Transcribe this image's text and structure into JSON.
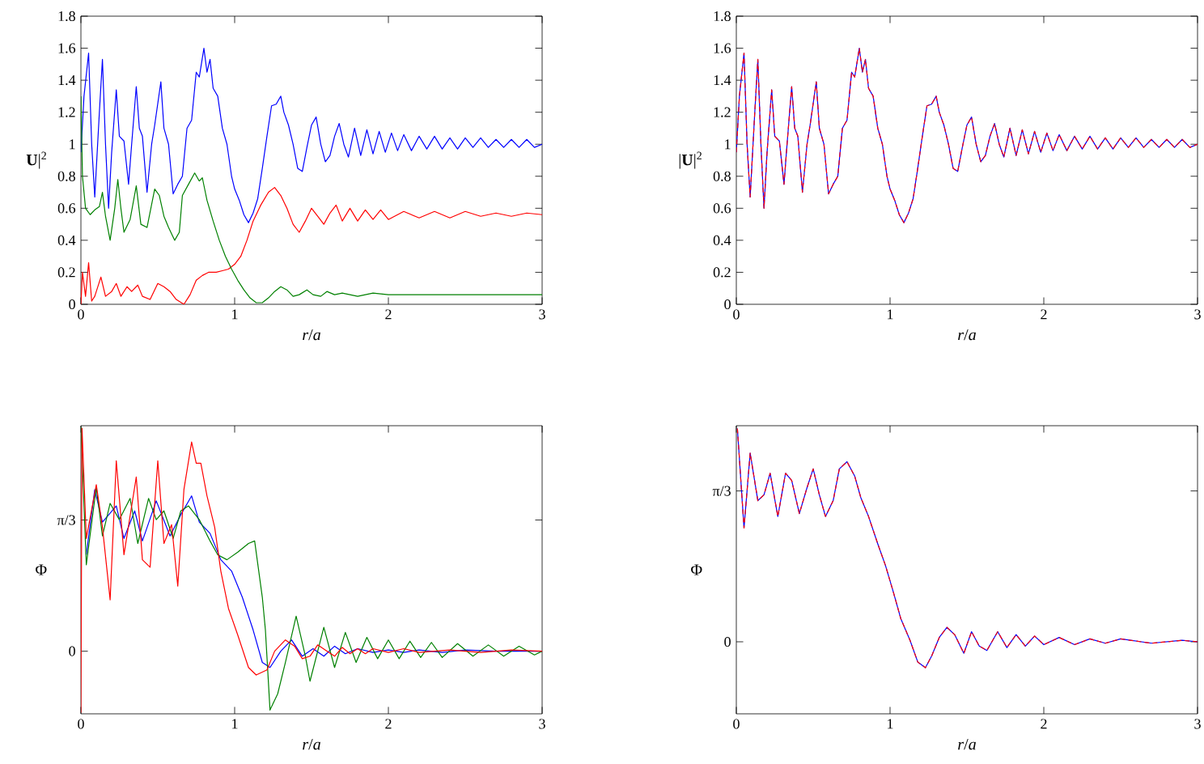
{
  "chart_data": [
    {
      "type": "line",
      "xlabel": "*r*/*a*",
      "ylabel": "**U**|$^{2}$",
      "xlim": [
        0,
        3
      ],
      "ylim": [
        0,
        1.8
      ],
      "xticks": [
        0,
        1,
        2,
        3
      ],
      "yticks": [
        0,
        0.2,
        0.4,
        0.6,
        0.8,
        1,
        1.2,
        1.4,
        1.6,
        1.8
      ],
      "series": [
        {
          "color": "#0000ff",
          "x": [
            0.0,
            0.02,
            0.05,
            0.07,
            0.09,
            0.12,
            0.14,
            0.16,
            0.18,
            0.2,
            0.23,
            0.25,
            0.28,
            0.31,
            0.33,
            0.36,
            0.38,
            0.4,
            0.43,
            0.46,
            0.48,
            0.52,
            0.54,
            0.57,
            0.6,
            0.63,
            0.66,
            0.69,
            0.72,
            0.75,
            0.77,
            0.8,
            0.82,
            0.84,
            0.86,
            0.89,
            0.92,
            0.95,
            0.98,
            1.0,
            1.03,
            1.06,
            1.09,
            1.12,
            1.15,
            1.18,
            1.21,
            1.24,
            1.27,
            1.3,
            1.32,
            1.35,
            1.38,
            1.41,
            1.44,
            1.47,
            1.5,
            1.53,
            1.56,
            1.59,
            1.62,
            1.65,
            1.68,
            1.71,
            1.74,
            1.78,
            1.82,
            1.86,
            1.9,
            1.94,
            1.98,
            2.02,
            2.06,
            2.1,
            2.15,
            2.2,
            2.25,
            2.3,
            2.35,
            2.4,
            2.45,
            2.5,
            2.55,
            2.6,
            2.65,
            2.7,
            2.75,
            2.8,
            2.85,
            2.9,
            2.95,
            3.0
          ],
          "values": [
            0.95,
            1.3,
            1.57,
            1.0,
            0.67,
            1.2,
            1.53,
            1.0,
            0.6,
            0.95,
            1.34,
            1.05,
            1.02,
            0.75,
            1.0,
            1.36,
            1.1,
            1.05,
            0.7,
            1.0,
            1.12,
            1.39,
            1.1,
            1.0,
            0.69,
            0.75,
            0.8,
            1.1,
            1.15,
            1.45,
            1.42,
            1.6,
            1.45,
            1.53,
            1.35,
            1.3,
            1.1,
            1.0,
            0.8,
            0.72,
            0.65,
            0.56,
            0.51,
            0.57,
            0.66,
            0.85,
            1.05,
            1.24,
            1.25,
            1.3,
            1.2,
            1.12,
            1.0,
            0.85,
            0.83,
            0.98,
            1.12,
            1.17,
            1.0,
            0.89,
            0.93,
            1.05,
            1.13,
            1.0,
            0.92,
            1.1,
            0.93,
            1.09,
            0.94,
            1.08,
            0.95,
            1.07,
            0.96,
            1.06,
            0.96,
            1.05,
            0.97,
            1.05,
            0.97,
            1.04,
            0.97,
            1.04,
            0.98,
            1.04,
            0.98,
            1.03,
            0.98,
            1.03,
            0.98,
            1.03,
            0.98,
            1.0
          ]
        },
        {
          "color": "#ff0000",
          "x": [
            0.0,
            0.01,
            0.03,
            0.05,
            0.07,
            0.09,
            0.13,
            0.16,
            0.2,
            0.23,
            0.26,
            0.3,
            0.33,
            0.37,
            0.4,
            0.45,
            0.5,
            0.54,
            0.58,
            0.62,
            0.67,
            0.71,
            0.75,
            0.79,
            0.83,
            0.88,
            0.92,
            0.96,
            1.0,
            1.04,
            1.08,
            1.12,
            1.17,
            1.22,
            1.26,
            1.3,
            1.34,
            1.38,
            1.42,
            1.46,
            1.5,
            1.54,
            1.58,
            1.62,
            1.66,
            1.7,
            1.75,
            1.8,
            1.85,
            1.9,
            1.95,
            2.0,
            2.1,
            2.2,
            2.3,
            2.4,
            2.5,
            2.6,
            2.7,
            2.8,
            2.9,
            3.0
          ],
          "values": [
            0.0,
            0.2,
            0.05,
            0.26,
            0.02,
            0.05,
            0.17,
            0.05,
            0.08,
            0.13,
            0.05,
            0.11,
            0.08,
            0.12,
            0.05,
            0.03,
            0.13,
            0.11,
            0.08,
            0.03,
            0.0,
            0.06,
            0.15,
            0.18,
            0.2,
            0.2,
            0.21,
            0.22,
            0.25,
            0.3,
            0.4,
            0.52,
            0.62,
            0.7,
            0.73,
            0.68,
            0.6,
            0.5,
            0.45,
            0.52,
            0.6,
            0.55,
            0.5,
            0.57,
            0.62,
            0.52,
            0.6,
            0.52,
            0.59,
            0.53,
            0.59,
            0.53,
            0.58,
            0.54,
            0.58,
            0.54,
            0.58,
            0.55,
            0.57,
            0.55,
            0.57,
            0.56
          ]
        },
        {
          "color": "#008000",
          "x": [
            0.0,
            0.01,
            0.03,
            0.06,
            0.09,
            0.12,
            0.14,
            0.16,
            0.19,
            0.22,
            0.24,
            0.26,
            0.28,
            0.32,
            0.36,
            0.39,
            0.43,
            0.48,
            0.51,
            0.54,
            0.57,
            0.61,
            0.64,
            0.66,
            0.7,
            0.74,
            0.77,
            0.79,
            0.82,
            0.86,
            0.9,
            0.94,
            0.98,
            1.02,
            1.06,
            1.1,
            1.14,
            1.18,
            1.22,
            1.26,
            1.3,
            1.34,
            1.38,
            1.42,
            1.47,
            1.51,
            1.56,
            1.6,
            1.65,
            1.7,
            1.8,
            1.9,
            2.0,
            2.2,
            2.5,
            2.8,
            3.0
          ],
          "values": [
            1.3,
            0.8,
            0.6,
            0.56,
            0.59,
            0.61,
            0.7,
            0.55,
            0.4,
            0.6,
            0.78,
            0.6,
            0.45,
            0.53,
            0.74,
            0.5,
            0.48,
            0.72,
            0.68,
            0.55,
            0.48,
            0.4,
            0.45,
            0.68,
            0.75,
            0.82,
            0.77,
            0.79,
            0.65,
            0.52,
            0.4,
            0.3,
            0.22,
            0.15,
            0.09,
            0.04,
            0.01,
            0.01,
            0.04,
            0.08,
            0.11,
            0.09,
            0.05,
            0.06,
            0.09,
            0.06,
            0.05,
            0.08,
            0.06,
            0.07,
            0.05,
            0.07,
            0.06,
            0.06,
            0.06,
            0.06,
            0.06
          ]
        }
      ]
    },
    {
      "type": "line",
      "xlabel": "*r*/*a*",
      "ylabel": "|**U**|$^{2}$",
      "xlim": [
        0,
        3
      ],
      "ylim": [
        0,
        1.8
      ],
      "xticks": [
        0,
        1,
        2,
        3
      ],
      "yticks": [
        0,
        0.2,
        0.4,
        0.6,
        0.8,
        1,
        1.2,
        1.4,
        1.6,
        1.8
      ],
      "series": [
        {
          "color": "#0000ff",
          "line_style": "solid",
          "x": [
            0.0,
            0.02,
            0.05,
            0.07,
            0.09,
            0.12,
            0.14,
            0.16,
            0.18,
            0.2,
            0.23,
            0.25,
            0.28,
            0.31,
            0.33,
            0.36,
            0.38,
            0.4,
            0.43,
            0.46,
            0.48,
            0.52,
            0.54,
            0.57,
            0.6,
            0.63,
            0.66,
            0.69,
            0.72,
            0.75,
            0.77,
            0.8,
            0.82,
            0.84,
            0.86,
            0.89,
            0.92,
            0.95,
            0.98,
            1.0,
            1.03,
            1.06,
            1.09,
            1.12,
            1.15,
            1.18,
            1.21,
            1.24,
            1.27,
            1.3,
            1.32,
            1.35,
            1.38,
            1.41,
            1.44,
            1.47,
            1.5,
            1.53,
            1.56,
            1.59,
            1.62,
            1.65,
            1.68,
            1.71,
            1.74,
            1.78,
            1.82,
            1.86,
            1.9,
            1.94,
            1.98,
            2.02,
            2.06,
            2.1,
            2.15,
            2.2,
            2.25,
            2.3,
            2.35,
            2.4,
            2.45,
            2.5,
            2.55,
            2.6,
            2.65,
            2.7,
            2.75,
            2.8,
            2.85,
            2.9,
            2.95,
            3.0
          ],
          "values": [
            0.95,
            1.3,
            1.57,
            1.0,
            0.67,
            1.2,
            1.53,
            1.0,
            0.6,
            0.95,
            1.34,
            1.05,
            1.02,
            0.75,
            1.0,
            1.36,
            1.1,
            1.05,
            0.7,
            1.0,
            1.12,
            1.39,
            1.1,
            1.0,
            0.69,
            0.75,
            0.8,
            1.1,
            1.15,
            1.45,
            1.42,
            1.6,
            1.45,
            1.53,
            1.35,
            1.3,
            1.1,
            1.0,
            0.8,
            0.72,
            0.65,
            0.56,
            0.51,
            0.57,
            0.66,
            0.85,
            1.05,
            1.24,
            1.25,
            1.3,
            1.2,
            1.12,
            1.0,
            0.85,
            0.83,
            0.98,
            1.12,
            1.17,
            1.0,
            0.89,
            0.93,
            1.05,
            1.13,
            1.0,
            0.92,
            1.1,
            0.93,
            1.09,
            0.94,
            1.08,
            0.95,
            1.07,
            0.96,
            1.06,
            0.96,
            1.05,
            0.97,
            1.05,
            0.97,
            1.04,
            0.97,
            1.04,
            0.98,
            1.04,
            0.98,
            1.03,
            0.98,
            1.03,
            0.98,
            1.03,
            0.98,
            1.0
          ]
        },
        {
          "color": "#ff0000",
          "line_style": "dashed",
          "x": [
            0.0,
            0.02,
            0.05,
            0.07,
            0.09,
            0.12,
            0.14,
            0.16,
            0.18,
            0.2,
            0.23,
            0.25,
            0.28,
            0.31,
            0.33,
            0.36,
            0.38,
            0.4,
            0.43,
            0.46,
            0.48,
            0.52,
            0.54,
            0.57,
            0.6,
            0.63,
            0.66,
            0.69,
            0.72,
            0.75,
            0.77,
            0.8,
            0.82,
            0.84,
            0.86,
            0.89,
            0.92,
            0.95,
            0.98,
            1.0,
            1.03,
            1.06,
            1.09,
            1.12,
            1.15,
            1.18,
            1.21,
            1.24,
            1.27,
            1.3,
            1.32,
            1.35,
            1.38,
            1.41,
            1.44,
            1.47,
            1.5,
            1.53,
            1.56,
            1.59,
            1.62,
            1.65,
            1.68,
            1.71,
            1.74,
            1.78,
            1.82,
            1.86,
            1.9,
            1.94,
            1.98,
            2.02,
            2.06,
            2.1,
            2.15,
            2.2,
            2.25,
            2.3,
            2.35,
            2.4,
            2.45,
            2.5,
            2.55,
            2.6,
            2.65,
            2.7,
            2.75,
            2.8,
            2.85,
            2.9,
            2.95,
            3.0
          ],
          "values": [
            0.95,
            1.3,
            1.57,
            1.0,
            0.67,
            1.2,
            1.53,
            1.0,
            0.6,
            0.95,
            1.34,
            1.05,
            1.02,
            0.75,
            1.0,
            1.36,
            1.1,
            1.05,
            0.7,
            1.0,
            1.12,
            1.39,
            1.1,
            1.0,
            0.69,
            0.75,
            0.8,
            1.1,
            1.15,
            1.45,
            1.42,
            1.6,
            1.45,
            1.53,
            1.35,
            1.3,
            1.1,
            1.0,
            0.8,
            0.72,
            0.65,
            0.56,
            0.51,
            0.57,
            0.66,
            0.85,
            1.05,
            1.24,
            1.25,
            1.3,
            1.2,
            1.12,
            1.0,
            0.85,
            0.83,
            0.98,
            1.12,
            1.17,
            1.0,
            0.89,
            0.93,
            1.05,
            1.13,
            1.0,
            0.92,
            1.1,
            0.93,
            1.09,
            0.94,
            1.08,
            0.95,
            1.07,
            0.96,
            1.06,
            0.96,
            1.05,
            0.97,
            1.05,
            0.97,
            1.04,
            0.97,
            1.04,
            0.98,
            1.04,
            0.98,
            1.03,
            0.98,
            1.03,
            0.98,
            1.03,
            0.98,
            1.0
          ]
        }
      ]
    },
    {
      "type": "line",
      "xlabel": "*r*/*a*",
      "ylabel": "Φ",
      "xlim": [
        0,
        3
      ],
      "ylim": [
        -0.5,
        1.8
      ],
      "xticks": [
        0,
        1,
        2,
        3
      ],
      "yticks": [
        0,
        {
          "value": 1.0472,
          "label": "π/3"
        }
      ],
      "series": [
        {
          "color": "#0000ff",
          "x": [
            0.035,
            0.09,
            0.14,
            0.23,
            0.28,
            0.35,
            0.4,
            0.49,
            0.58,
            0.65,
            0.72,
            0.77,
            0.84,
            0.91,
            0.98,
            1.05,
            1.12,
            1.18,
            1.23,
            1.3,
            1.37,
            1.44,
            1.51,
            1.58,
            1.65,
            1.72,
            1.8,
            1.9,
            2.0,
            2.1,
            2.2,
            2.35,
            2.5,
            2.7,
            3.0
          ],
          "values": [
            0.77,
            1.29,
            1.03,
            1.16,
            0.9,
            1.12,
            0.88,
            1.2,
            0.92,
            1.09,
            1.24,
            1.03,
            0.94,
            0.73,
            0.64,
            0.43,
            0.17,
            -0.09,
            -0.13,
            0.0,
            0.09,
            -0.04,
            0.02,
            -0.04,
            0.04,
            -0.02,
            0.02,
            -0.01,
            0.01,
            -0.01,
            0.01,
            -0.01,
            0.01,
            0.0,
            0.0
          ]
        },
        {
          "color": "#008000",
          "x": [
            0.0,
            0.035,
            0.1,
            0.14,
            0.19,
            0.25,
            0.32,
            0.37,
            0.44,
            0.49,
            0.54,
            0.6,
            0.65,
            0.7,
            0.77,
            0.84,
            0.89,
            0.95,
            1.02,
            1.09,
            1.13,
            1.18,
            1.2,
            1.23,
            1.28,
            1.33,
            1.4,
            1.46,
            1.49,
            1.58,
            1.65,
            1.72,
            1.79,
            1.86,
            1.93,
            2.0,
            2.07,
            2.14,
            2.21,
            2.28,
            2.35,
            2.45,
            2.55,
            2.65,
            2.75,
            2.85,
            2.95,
            3.0
          ],
          "values": [
            1.79,
            0.69,
            1.31,
            0.92,
            1.18,
            1.05,
            1.22,
            0.86,
            1.22,
            1.05,
            1.12,
            0.9,
            1.12,
            1.16,
            1.05,
            0.88,
            0.77,
            0.73,
            0.79,
            0.86,
            0.88,
            0.43,
            0.17,
            -0.47,
            -0.34,
            -0.09,
            0.28,
            -0.04,
            -0.24,
            0.19,
            -0.13,
            0.15,
            -0.09,
            0.11,
            -0.06,
            0.09,
            -0.06,
            0.08,
            -0.05,
            0.07,
            -0.05,
            0.06,
            -0.04,
            0.05,
            -0.04,
            0.04,
            -0.03,
            0.0
          ]
        },
        {
          "color": "#ff0000",
          "x": [
            0.0,
            0.007,
            0.035,
            0.1,
            0.14,
            0.19,
            0.23,
            0.28,
            0.36,
            0.4,
            0.45,
            0.5,
            0.54,
            0.59,
            0.63,
            0.67,
            0.72,
            0.75,
            0.78,
            0.82,
            0.87,
            0.91,
            0.96,
            1.02,
            1.09,
            1.14,
            1.21,
            1.26,
            1.33,
            1.39,
            1.44,
            1.49,
            1.54,
            1.6,
            1.65,
            1.7,
            1.75,
            1.8,
            1.85,
            1.9,
            2.0,
            2.1,
            2.2,
            2.4,
            2.6,
            2.8,
            3.0
          ],
          "values": [
            -0.49,
            1.78,
            0.9,
            1.33,
            0.99,
            0.41,
            1.52,
            0.77,
            1.39,
            0.73,
            0.67,
            1.52,
            0.86,
            1.01,
            0.52,
            1.29,
            1.67,
            1.5,
            1.5,
            1.24,
            0.99,
            0.64,
            0.34,
            0.13,
            -0.13,
            -0.19,
            -0.15,
            0.0,
            0.09,
            0.04,
            -0.06,
            -0.04,
            0.05,
            0.0,
            -0.04,
            0.03,
            -0.02,
            0.02,
            -0.02,
            0.02,
            -0.01,
            0.02,
            -0.01,
            0.01,
            -0.01,
            0.01,
            0.0
          ]
        }
      ]
    },
    {
      "type": "line",
      "xlabel": "*r*/*a*",
      "ylabel": "Φ",
      "xlim": [
        0,
        3
      ],
      "ylim": [
        -0.5,
        1.5
      ],
      "xticks": [
        0,
        1,
        2,
        3
      ],
      "yticks": [
        0,
        {
          "value": 1.0472,
          "label": "π/3"
        }
      ],
      "series": [
        {
          "color": "#0000ff",
          "line_style": "solid",
          "x": [
            0.007,
            0.05,
            0.09,
            0.14,
            0.18,
            0.22,
            0.27,
            0.32,
            0.36,
            0.41,
            0.46,
            0.5,
            0.54,
            0.58,
            0.63,
            0.67,
            0.72,
            0.77,
            0.81,
            0.86,
            0.92,
            0.97,
            1.02,
            1.07,
            1.13,
            1.18,
            1.23,
            1.27,
            1.32,
            1.37,
            1.42,
            1.48,
            1.53,
            1.58,
            1.63,
            1.7,
            1.76,
            1.82,
            1.88,
            1.94,
            2.0,
            2.1,
            2.2,
            2.3,
            2.4,
            2.5,
            2.7,
            2.9,
            3.0
          ],
          "values": [
            1.48,
            0.79,
            1.31,
            0.98,
            1.02,
            1.17,
            0.87,
            1.17,
            1.12,
            0.89,
            1.07,
            1.2,
            1.02,
            0.87,
            0.98,
            1.2,
            1.25,
            1.15,
            1.0,
            0.87,
            0.68,
            0.53,
            0.35,
            0.16,
            0.01,
            -0.14,
            -0.18,
            -0.1,
            0.03,
            0.1,
            0.05,
            -0.08,
            0.07,
            -0.03,
            -0.06,
            0.07,
            -0.04,
            0.05,
            -0.03,
            0.04,
            -0.02,
            0.03,
            -0.02,
            0.02,
            -0.01,
            0.02,
            -0.01,
            0.01,
            0.0
          ]
        },
        {
          "color": "#ff0000",
          "line_style": "dashed",
          "x": [
            0.007,
            0.05,
            0.09,
            0.14,
            0.18,
            0.22,
            0.27,
            0.32,
            0.36,
            0.41,
            0.46,
            0.5,
            0.54,
            0.58,
            0.63,
            0.67,
            0.72,
            0.77,
            0.81,
            0.86,
            0.92,
            0.97,
            1.02,
            1.07,
            1.13,
            1.18,
            1.23,
            1.27,
            1.32,
            1.37,
            1.42,
            1.48,
            1.53,
            1.58,
            1.63,
            1.7,
            1.76,
            1.82,
            1.88,
            1.94,
            2.0,
            2.1,
            2.2,
            2.3,
            2.4,
            2.5,
            2.7,
            2.9,
            3.0
          ],
          "values": [
            1.48,
            0.79,
            1.31,
            0.98,
            1.02,
            1.17,
            0.87,
            1.17,
            1.12,
            0.89,
            1.07,
            1.2,
            1.02,
            0.87,
            0.98,
            1.2,
            1.25,
            1.15,
            1.0,
            0.87,
            0.68,
            0.53,
            0.35,
            0.16,
            0.01,
            -0.14,
            -0.18,
            -0.1,
            0.03,
            0.1,
            0.05,
            -0.08,
            0.07,
            -0.03,
            -0.06,
            0.07,
            -0.04,
            0.05,
            -0.03,
            0.04,
            -0.02,
            0.03,
            -0.02,
            0.02,
            -0.01,
            0.02,
            -0.01,
            0.01,
            0.0
          ]
        }
      ]
    }
  ]
}
